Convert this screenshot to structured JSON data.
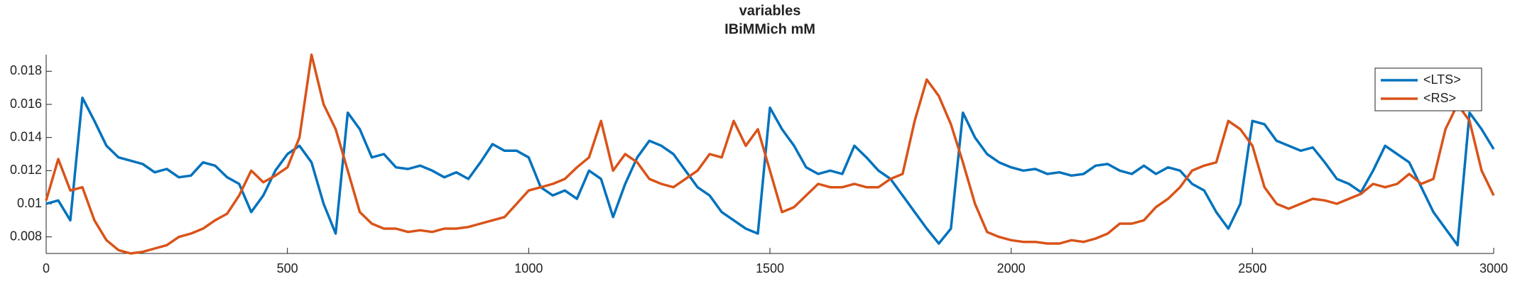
{
  "chart_data": {
    "type": "line",
    "title": "variables",
    "subtitle": "IBiMMich mM",
    "x": [
      0,
      25,
      50,
      75,
      100,
      125,
      150,
      175,
      200,
      225,
      250,
      275,
      300,
      325,
      350,
      375,
      400,
      425,
      450,
      475,
      500,
      525,
      550,
      575,
      600,
      625,
      650,
      675,
      700,
      725,
      750,
      775,
      800,
      825,
      850,
      875,
      900,
      925,
      950,
      975,
      1000,
      1025,
      1050,
      1075,
      1100,
      1125,
      1150,
      1175,
      1200,
      1225,
      1250,
      1275,
      1300,
      1325,
      1350,
      1375,
      1400,
      1425,
      1450,
      1475,
      1500,
      1525,
      1550,
      1575,
      1600,
      1625,
      1650,
      1675,
      1700,
      1725,
      1750,
      1775,
      1800,
      1825,
      1850,
      1875,
      1900,
      1925,
      1950,
      1975,
      2000,
      2025,
      2050,
      2075,
      2100,
      2125,
      2150,
      2175,
      2200,
      2225,
      2250,
      2275,
      2300,
      2325,
      2350,
      2375,
      2400,
      2425,
      2450,
      2475,
      2500,
      2525,
      2550,
      2575,
      2600,
      2625,
      2650,
      2675,
      2700,
      2725,
      2750,
      2775,
      2800,
      2825,
      2850,
      2875,
      2900,
      2925,
      2950,
      2975,
      3000
    ],
    "series": [
      {
        "name": "<LTS>",
        "color": "#0072bd",
        "values": [
          0.01,
          0.0102,
          0.009,
          0.0164,
          0.015,
          0.0135,
          0.0128,
          0.0126,
          0.0124,
          0.0119,
          0.0121,
          0.0116,
          0.0117,
          0.0125,
          0.0123,
          0.0116,
          0.0112,
          0.0095,
          0.0105,
          0.012,
          0.013,
          0.0135,
          0.0125,
          0.01,
          0.0082,
          0.0155,
          0.0145,
          0.0128,
          0.013,
          0.0122,
          0.0121,
          0.0123,
          0.012,
          0.0116,
          0.0119,
          0.0115,
          0.0125,
          0.0136,
          0.0132,
          0.0132,
          0.0128,
          0.011,
          0.0105,
          0.0108,
          0.0103,
          0.012,
          0.0115,
          0.0092,
          0.0112,
          0.0128,
          0.0138,
          0.0135,
          0.013,
          0.012,
          0.011,
          0.0105,
          0.0095,
          0.009,
          0.0085,
          0.0082,
          0.0158,
          0.0145,
          0.0135,
          0.0122,
          0.0118,
          0.012,
          0.0118,
          0.0135,
          0.0128,
          0.012,
          0.0115,
          0.0105,
          0.0095,
          0.0085,
          0.0076,
          0.0085,
          0.0155,
          0.014,
          0.013,
          0.0125,
          0.0122,
          0.012,
          0.0121,
          0.0118,
          0.0119,
          0.0117,
          0.0118,
          0.0123,
          0.0124,
          0.012,
          0.0118,
          0.0123,
          0.0118,
          0.0122,
          0.012,
          0.0112,
          0.0108,
          0.0095,
          0.0085,
          0.01,
          0.015,
          0.0148,
          0.0138,
          0.0135,
          0.0132,
          0.0134,
          0.0125,
          0.0115,
          0.0112,
          0.0107,
          0.012,
          0.0135,
          0.013,
          0.0125,
          0.011,
          0.0095,
          0.0085,
          0.0075,
          0.0155,
          0.0145,
          0.0133
        ]
      },
      {
        "name": "<RS>",
        "color": "#d95319",
        "values": [
          0.0102,
          0.0127,
          0.0108,
          0.011,
          0.009,
          0.0078,
          0.0072,
          0.007,
          0.0071,
          0.0073,
          0.0075,
          0.008,
          0.0082,
          0.0085,
          0.009,
          0.0094,
          0.0105,
          0.012,
          0.0113,
          0.0117,
          0.0122,
          0.014,
          0.019,
          0.016,
          0.0145,
          0.012,
          0.0095,
          0.0088,
          0.0085,
          0.0085,
          0.0083,
          0.0084,
          0.0083,
          0.0085,
          0.0085,
          0.0086,
          0.0088,
          0.009,
          0.0092,
          0.01,
          0.0108,
          0.011,
          0.0112,
          0.0115,
          0.0122,
          0.0128,
          0.015,
          0.012,
          0.013,
          0.0125,
          0.0115,
          0.0112,
          0.011,
          0.0115,
          0.012,
          0.013,
          0.0128,
          0.015,
          0.0135,
          0.0145,
          0.012,
          0.0095,
          0.0098,
          0.0105,
          0.0112,
          0.011,
          0.011,
          0.0112,
          0.011,
          0.011,
          0.0115,
          0.0118,
          0.015,
          0.0175,
          0.0165,
          0.0148,
          0.0125,
          0.01,
          0.0083,
          0.008,
          0.0078,
          0.0077,
          0.0077,
          0.0076,
          0.0076,
          0.0078,
          0.0077,
          0.0079,
          0.0082,
          0.0088,
          0.0088,
          0.009,
          0.0098,
          0.0103,
          0.011,
          0.012,
          0.0123,
          0.0125,
          0.015,
          0.0145,
          0.0135,
          0.011,
          0.01,
          0.0097,
          0.01,
          0.0103,
          0.0102,
          0.01,
          0.0103,
          0.0106,
          0.0112,
          0.011,
          0.0112,
          0.0118,
          0.0112,
          0.0115,
          0.0145,
          0.016,
          0.015,
          0.012,
          0.0105
        ]
      }
    ],
    "xlim": [
      0,
      3000
    ],
    "xticks": [
      0,
      500,
      1000,
      1500,
      2000,
      2500,
      3000
    ],
    "ylim": [
      0.007,
      0.019
    ],
    "yticks": [
      0.008,
      0.01,
      0.012,
      0.014,
      0.016,
      0.018
    ],
    "legend": "upper right"
  }
}
